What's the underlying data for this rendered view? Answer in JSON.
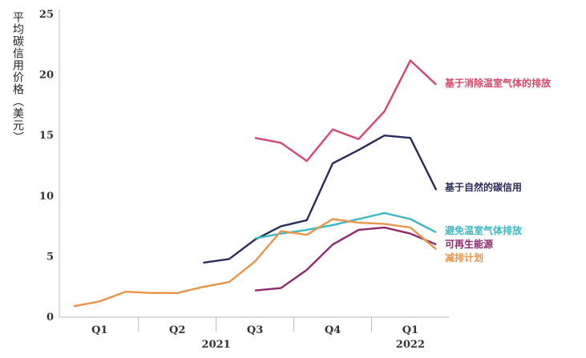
{
  "chart_data": {
    "type": "line",
    "title": "",
    "ylabel": "平均碳信用价格（美元）",
    "xlabel": "",
    "ylim": [
      0,
      25
    ],
    "yticks": [
      0,
      5,
      10,
      15,
      20,
      25
    ],
    "grid": false,
    "x": [
      1,
      2,
      3,
      4,
      5,
      6,
      7,
      8,
      9,
      10,
      11,
      12,
      13,
      14,
      15
    ],
    "quarters": [
      {
        "label": "Q1",
        "center": 2
      },
      {
        "label": "Q2",
        "center": 5
      },
      {
        "label": "Q3",
        "center": 8
      },
      {
        "label": "Q4",
        "center": 11
      },
      {
        "label": "Q1",
        "center": 14
      }
    ],
    "years": [
      {
        "label": "2021",
        "center": 6.5
      },
      {
        "label": "2022",
        "center": 14
      }
    ],
    "series": [
      {
        "name": "基于消除温室气体的排放",
        "color": "#d6476a",
        "values": [
          null,
          null,
          null,
          null,
          null,
          null,
          null,
          14.8,
          14.4,
          12.9,
          15.5,
          14.7,
          17.0,
          21.2,
          19.2
        ]
      },
      {
        "name": "基于自然的碳信用",
        "color": "#2a2d5a",
        "values": [
          null,
          null,
          null,
          null,
          null,
          4.5,
          4.8,
          6.4,
          7.5,
          8.0,
          12.7,
          13.8,
          15.0,
          14.8,
          10.5
        ]
      },
      {
        "name": "避免温室气体排放",
        "color": "#3ab8c4",
        "values": [
          null,
          null,
          null,
          null,
          null,
          null,
          null,
          6.5,
          6.9,
          7.2,
          7.6,
          8.1,
          8.6,
          8.1,
          7.0
        ]
      },
      {
        "name": "可再生能源",
        "color": "#8e2a6e",
        "values": [
          null,
          null,
          null,
          null,
          null,
          null,
          null,
          2.2,
          2.4,
          3.9,
          6.0,
          7.2,
          7.4,
          6.9,
          6.0
        ]
      },
      {
        "name": "减排计划",
        "color": "#e9944a",
        "values": [
          0.9,
          1.3,
          2.1,
          2.0,
          2.0,
          2.5,
          2.9,
          4.6,
          7.1,
          6.8,
          8.1,
          7.8,
          7.7,
          7.4,
          5.6
        ]
      }
    ]
  }
}
